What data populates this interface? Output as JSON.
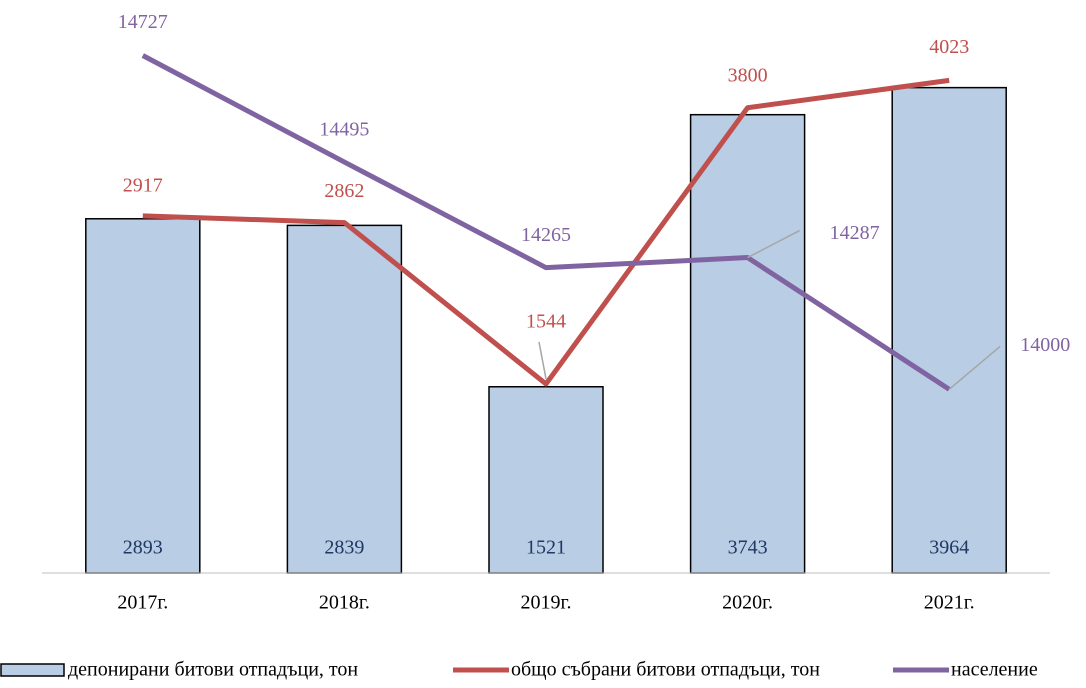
{
  "chart_data": {
    "type": "bar-line",
    "categories": [
      "2017г.",
      "2018г.",
      "2019г.",
      "2020г.",
      "2021г."
    ],
    "ylim": [
      0,
      4500
    ],
    "y2lim": [
      13600,
      14800
    ],
    "series": [
      {
        "name": "депонирани битови отпадъци, тон",
        "type": "bar",
        "color": "#b9cde5",
        "values": [
          2893,
          2839,
          1521,
          3743,
          3964
        ]
      },
      {
        "name": "общо събрани битови отпадъци, тон",
        "type": "line",
        "color": "#c0504d",
        "values": [
          2917,
          2862,
          1544,
          3800,
          4023
        ]
      },
      {
        "name": "население",
        "type": "line",
        "axis": "y2",
        "color": "#8064a2",
        "values": [
          14727,
          14495,
          14265,
          14287,
          14000
        ]
      }
    ]
  }
}
